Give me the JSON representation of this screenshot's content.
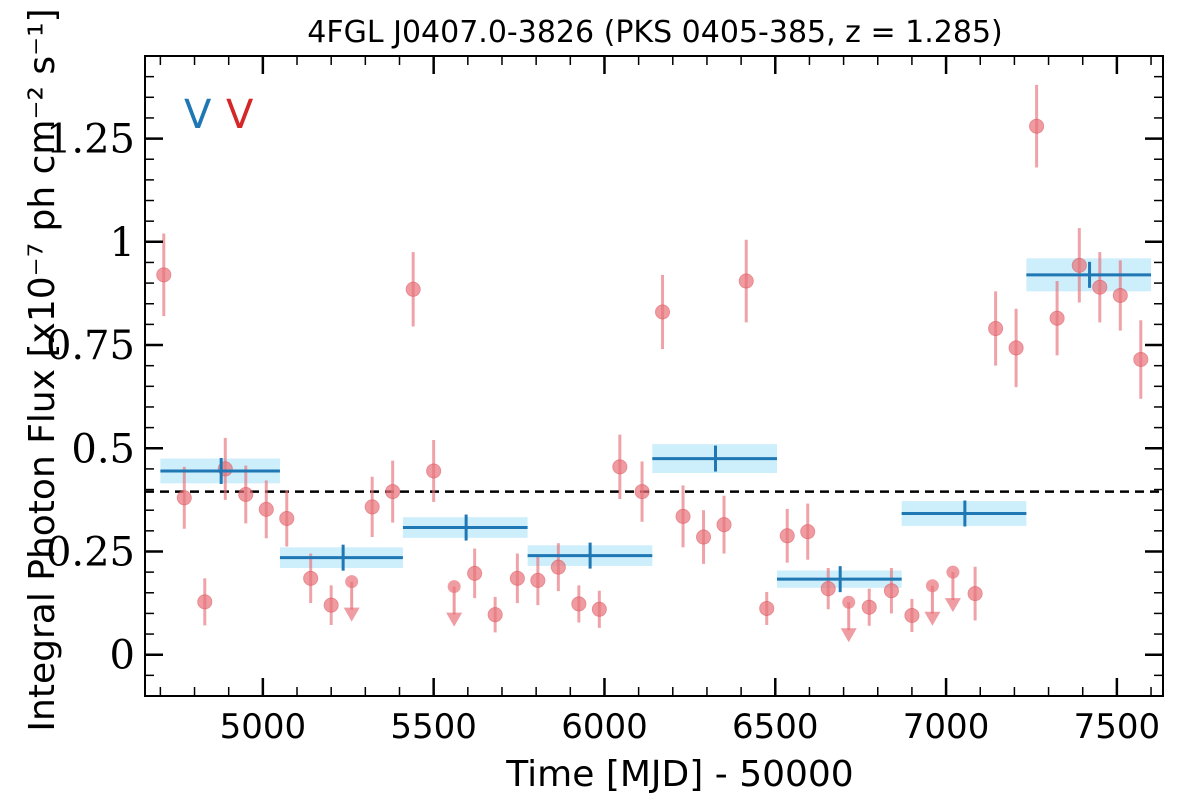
{
  "chart_data": {
    "type": "scatter",
    "title": "4FGL J0407.0-3826 (PKS 0405-385, z = 1.285)",
    "xlabel": "Time [MJD] - 50000",
    "ylabel": "Integral Photon Flux [x10⁻⁷ ph cm⁻² s⁻¹]",
    "xlim": [
      4655,
      7635
    ],
    "ylim": [
      -0.1,
      1.45
    ],
    "x_ticks": [
      5000,
      5500,
      6000,
      6500,
      7000,
      7500
    ],
    "y_ticks": [
      0,
      0.25,
      0.5,
      0.75,
      1,
      1.25
    ],
    "y_tick_labels": [
      "0",
      "0.25",
      "0.5",
      "0.75",
      "1",
      "1.25"
    ],
    "grid": false,
    "corner_marks": [
      {
        "text": "V",
        "color": "#1f77b4"
      },
      {
        "text": "V",
        "color": "#d62728"
      }
    ],
    "mean_flux": 0.395,
    "series": [
      {
        "color": "#1f77b4",
        "band_color": "#cdeefb",
        "type": "bayesian_blocks",
        "points": [
          {
            "x0": 4700,
            "x1": 5050,
            "xc": 4878,
            "y": 0.445,
            "y_lo": 0.415,
            "y_hi": 0.475
          },
          {
            "x0": 5050,
            "x1": 5410,
            "xc": 5235,
            "y": 0.235,
            "y_lo": 0.21,
            "y_hi": 0.26
          },
          {
            "x0": 5410,
            "x1": 5775,
            "xc": 5595,
            "y": 0.308,
            "y_lo": 0.283,
            "y_hi": 0.333
          },
          {
            "x0": 5775,
            "x1": 6140,
            "xc": 5958,
            "y": 0.24,
            "y_lo": 0.215,
            "y_hi": 0.265
          },
          {
            "x0": 6140,
            "x1": 6505,
            "xc": 6325,
            "y": 0.475,
            "y_lo": 0.44,
            "y_hi": 0.51
          },
          {
            "x0": 6505,
            "x1": 6870,
            "xc": 6690,
            "y": 0.183,
            "y_lo": 0.162,
            "y_hi": 0.204
          },
          {
            "x0": 6870,
            "x1": 7235,
            "xc": 7055,
            "y": 0.342,
            "y_lo": 0.312,
            "y_hi": 0.372
          },
          {
            "x0": 7235,
            "x1": 7600,
            "xc": 7420,
            "y": 0.92,
            "y_lo": 0.88,
            "y_hi": 0.96
          }
        ]
      },
      {
        "color": "#e8737a",
        "type": "light_curve",
        "points": [
          {
            "x": 4710,
            "y": 0.92,
            "err": 0.1
          },
          {
            "x": 4770,
            "y": 0.38,
            "err": 0.075
          },
          {
            "x": 4830,
            "y": 0.128,
            "err": 0.057
          },
          {
            "x": 4890,
            "y": 0.45,
            "err": 0.075
          },
          {
            "x": 4950,
            "y": 0.388,
            "err": 0.07
          },
          {
            "x": 5010,
            "y": 0.352,
            "err": 0.07
          },
          {
            "x": 5070,
            "y": 0.33,
            "err": 0.068
          },
          {
            "x": 5140,
            "y": 0.185,
            "err": 0.06
          },
          {
            "x": 5200,
            "y": 0.12,
            "err": 0.048
          },
          {
            "x": 5260,
            "y": 0.177,
            "upper_limit": true
          },
          {
            "x": 5320,
            "y": 0.358,
            "err": 0.073
          },
          {
            "x": 5380,
            "y": 0.395,
            "err": 0.075
          },
          {
            "x": 5440,
            "y": 0.885,
            "err": 0.09
          },
          {
            "x": 5500,
            "y": 0.445,
            "err": 0.075
          },
          {
            "x": 5560,
            "y": 0.165,
            "upper_limit": true
          },
          {
            "x": 5620,
            "y": 0.197,
            "err": 0.06
          },
          {
            "x": 5680,
            "y": 0.097,
            "err": 0.043
          },
          {
            "x": 5745,
            "y": 0.185,
            "err": 0.06
          },
          {
            "x": 5805,
            "y": 0.18,
            "err": 0.06
          },
          {
            "x": 5865,
            "y": 0.212,
            "err": 0.058
          },
          {
            "x": 5925,
            "y": 0.123,
            "err": 0.045
          },
          {
            "x": 5985,
            "y": 0.11,
            "err": 0.045
          },
          {
            "x": 6045,
            "y": 0.455,
            "err": 0.078
          },
          {
            "x": 6110,
            "y": 0.395,
            "err": 0.073
          },
          {
            "x": 6170,
            "y": 0.83,
            "err": 0.09
          },
          {
            "x": 6230,
            "y": 0.335,
            "err": 0.075
          },
          {
            "x": 6290,
            "y": 0.285,
            "err": 0.065
          },
          {
            "x": 6350,
            "y": 0.315,
            "err": 0.07
          },
          {
            "x": 6415,
            "y": 0.905,
            "err": 0.1
          },
          {
            "x": 6475,
            "y": 0.112,
            "err": 0.04
          },
          {
            "x": 6535,
            "y": 0.288,
            "err": 0.065
          },
          {
            "x": 6595,
            "y": 0.298,
            "err": 0.068
          },
          {
            "x": 6655,
            "y": 0.16,
            "err": 0.05
          },
          {
            "x": 6715,
            "y": 0.127,
            "upper_limit": true
          },
          {
            "x": 6775,
            "y": 0.115,
            "err": 0.045
          },
          {
            "x": 6840,
            "y": 0.155,
            "err": 0.055
          },
          {
            "x": 6900,
            "y": 0.095,
            "err": 0.04
          },
          {
            "x": 6960,
            "y": 0.167,
            "upper_limit": true
          },
          {
            "x": 7020,
            "y": 0.2,
            "upper_limit": true
          },
          {
            "x": 7085,
            "y": 0.148,
            "err": 0.065
          },
          {
            "x": 7145,
            "y": 0.79,
            "err": 0.09
          },
          {
            "x": 7205,
            "y": 0.743,
            "err": 0.095
          },
          {
            "x": 7265,
            "y": 1.28,
            "err": 0.1
          },
          {
            "x": 7325,
            "y": 0.815,
            "err": 0.09
          },
          {
            "x": 7390,
            "y": 0.943,
            "err": 0.09
          },
          {
            "x": 7450,
            "y": 0.89,
            "err": 0.085
          },
          {
            "x": 7510,
            "y": 0.87,
            "err": 0.085
          },
          {
            "x": 7570,
            "y": 0.715,
            "err": 0.095
          }
        ]
      }
    ]
  }
}
